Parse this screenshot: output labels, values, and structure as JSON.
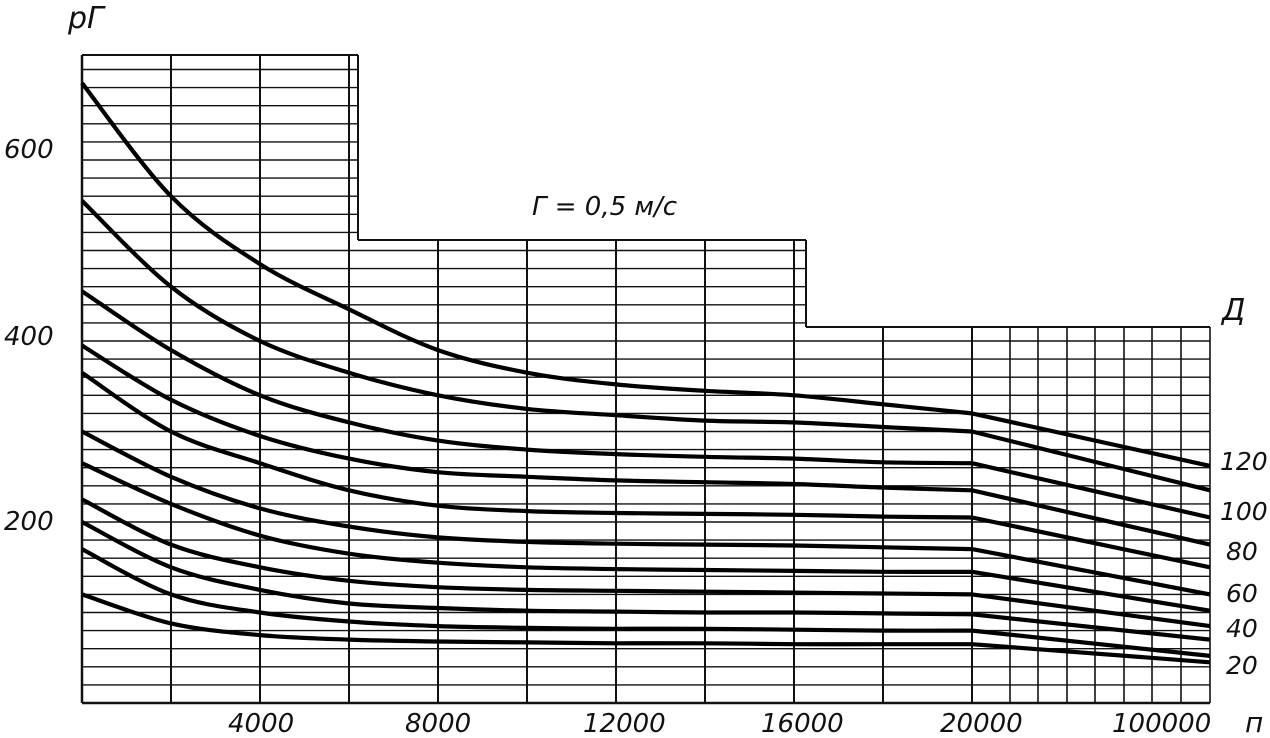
{
  "chart_data": {
    "type": "line",
    "ylabel": "рГ",
    "xlabel": "п",
    "annotation": "Г = 0,5 м/с",
    "legend_title": "Д",
    "y_ticks": [
      "200",
      "400",
      "600"
    ],
    "x_ticks": [
      "4000",
      "8000",
      "12000",
      "16000",
      "20000",
      "100000"
    ],
    "series_labels": [
      "120",
      "100",
      "80",
      "60",
      "40",
      "20"
    ],
    "x_scale": "piecewise: linear 0-20000, compressed 20000-100000",
    "ylim": [
      0,
      700
    ],
    "grid": true,
    "series": [
      {
        "values": [
          [
            0,
            685
          ],
          [
            2000,
            560
          ],
          [
            4000,
            485
          ],
          [
            6000,
            435
          ],
          [
            8000,
            390
          ],
          [
            10000,
            365
          ],
          [
            12000,
            352
          ],
          [
            14000,
            345
          ],
          [
            16000,
            340
          ],
          [
            18000,
            330
          ],
          [
            20000,
            320
          ],
          [
            100000,
            262
          ]
        ]
      },
      {
        "values": [
          [
            0,
            555
          ],
          [
            2000,
            460
          ],
          [
            4000,
            400
          ],
          [
            6000,
            365
          ],
          [
            8000,
            340
          ],
          [
            10000,
            325
          ],
          [
            12000,
            318
          ],
          [
            14000,
            312
          ],
          [
            16000,
            310
          ],
          [
            18000,
            305
          ],
          [
            20000,
            300
          ],
          [
            100000,
            235
          ]
        ]
      },
      {
        "values": [
          [
            0,
            455
          ],
          [
            2000,
            390
          ],
          [
            4000,
            340
          ],
          [
            6000,
            310
          ],
          [
            8000,
            290
          ],
          [
            10000,
            280
          ],
          [
            12000,
            275
          ],
          [
            14000,
            272
          ],
          [
            16000,
            270
          ],
          [
            18000,
            266
          ],
          [
            20000,
            265
          ],
          [
            100000,
            205
          ]
        ]
      },
      {
        "values": [
          [
            0,
            395
          ],
          [
            2000,
            335
          ],
          [
            4000,
            295
          ],
          [
            6000,
            270
          ],
          [
            8000,
            255
          ],
          [
            10000,
            250
          ],
          [
            12000,
            246
          ],
          [
            14000,
            244
          ],
          [
            16000,
            242
          ],
          [
            18000,
            238
          ],
          [
            20000,
            235
          ],
          [
            100000,
            175
          ]
        ]
      },
      {
        "values": [
          [
            0,
            365
          ],
          [
            2000,
            300
          ],
          [
            4000,
            265
          ],
          [
            6000,
            235
          ],
          [
            8000,
            218
          ],
          [
            10000,
            212
          ],
          [
            12000,
            210
          ],
          [
            14000,
            209
          ],
          [
            16000,
            208
          ],
          [
            18000,
            206
          ],
          [
            20000,
            205
          ],
          [
            100000,
            150
          ]
        ]
      },
      {
        "values": [
          [
            0,
            300
          ],
          [
            2000,
            250
          ],
          [
            4000,
            215
          ],
          [
            6000,
            195
          ],
          [
            8000,
            183
          ],
          [
            10000,
            178
          ],
          [
            12000,
            176
          ],
          [
            14000,
            175
          ],
          [
            16000,
            174
          ],
          [
            18000,
            172
          ],
          [
            20000,
            170
          ],
          [
            100000,
            120
          ]
        ]
      },
      {
        "values": [
          [
            0,
            265
          ],
          [
            2000,
            220
          ],
          [
            4000,
            185
          ],
          [
            6000,
            165
          ],
          [
            8000,
            155
          ],
          [
            10000,
            150
          ],
          [
            12000,
            148
          ],
          [
            14000,
            147
          ],
          [
            16000,
            146
          ],
          [
            18000,
            145
          ],
          [
            20000,
            145
          ],
          [
            100000,
            102
          ]
        ]
      },
      {
        "values": [
          [
            0,
            225
          ],
          [
            2000,
            175
          ],
          [
            4000,
            150
          ],
          [
            6000,
            135
          ],
          [
            8000,
            128
          ],
          [
            10000,
            125
          ],
          [
            12000,
            124
          ],
          [
            14000,
            123
          ],
          [
            16000,
            122
          ],
          [
            18000,
            121
          ],
          [
            20000,
            120
          ],
          [
            100000,
            85
          ]
        ]
      },
      {
        "values": [
          [
            0,
            200
          ],
          [
            2000,
            150
          ],
          [
            4000,
            125
          ],
          [
            6000,
            110
          ],
          [
            8000,
            105
          ],
          [
            10000,
            102
          ],
          [
            12000,
            101
          ],
          [
            14000,
            100
          ],
          [
            16000,
            100
          ],
          [
            18000,
            99
          ],
          [
            20000,
            98
          ],
          [
            100000,
            70
          ]
        ]
      },
      {
        "values": [
          [
            0,
            170
          ],
          [
            2000,
            120
          ],
          [
            4000,
            100
          ],
          [
            6000,
            90
          ],
          [
            8000,
            85
          ],
          [
            10000,
            83
          ],
          [
            12000,
            82
          ],
          [
            14000,
            82
          ],
          [
            16000,
            81
          ],
          [
            18000,
            80
          ],
          [
            20000,
            80
          ],
          [
            100000,
            52
          ]
        ]
      },
      {
        "values": [
          [
            0,
            120
          ],
          [
            2000,
            88
          ],
          [
            4000,
            75
          ],
          [
            6000,
            70
          ],
          [
            8000,
            68
          ],
          [
            10000,
            67
          ],
          [
            12000,
            66
          ],
          [
            14000,
            66
          ],
          [
            16000,
            65
          ],
          [
            18000,
            65
          ],
          [
            20000,
            65
          ],
          [
            100000,
            45
          ]
        ]
      }
    ]
  }
}
